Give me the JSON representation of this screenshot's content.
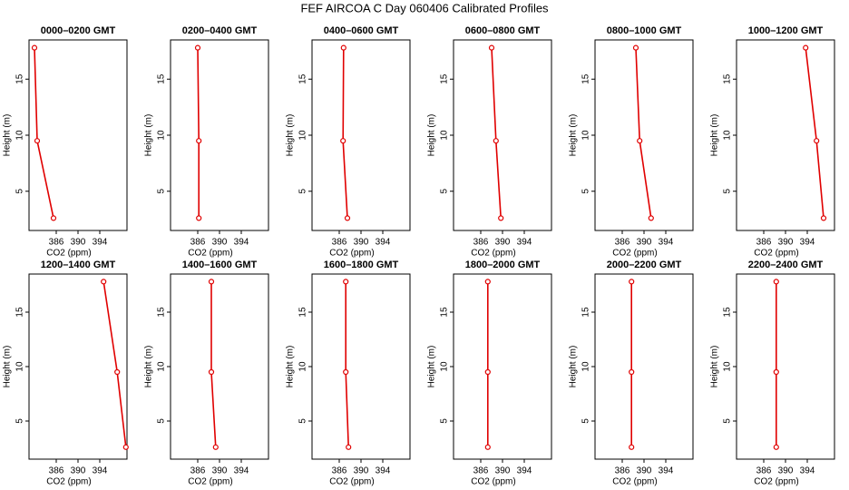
{
  "title": "FEF AIRCOA C  Day 060406  Calibrated Profiles",
  "chart_data": [
    {
      "type": "line",
      "title": "0000–0200 GMT",
      "x_label": "CO2 (ppm)",
      "y_label": "Height (m)",
      "xlim": [
        381,
        399
      ],
      "xticks": [
        386,
        390,
        394
      ],
      "ylim": [
        1.5,
        18.5
      ],
      "yticks": [
        5,
        10,
        15
      ],
      "series": [
        {
          "color": "#e00000",
          "x": [
            382.0,
            382.5,
            385.5
          ],
          "values": [
            17.8,
            9.5,
            2.6
          ]
        }
      ]
    },
    {
      "type": "line",
      "title": "0200–0400 GMT",
      "x_label": "CO2 (ppm)",
      "y_label": "Height (m)",
      "xlim": [
        381,
        399
      ],
      "xticks": [
        386,
        390,
        394
      ],
      "ylim": [
        1.5,
        18.5
      ],
      "yticks": [
        5,
        10,
        15
      ],
      "series": [
        {
          "color": "#e00000",
          "x": [
            386.0,
            386.2,
            386.2
          ],
          "values": [
            17.8,
            9.5,
            2.6
          ]
        }
      ]
    },
    {
      "type": "line",
      "title": "0400–0600 GMT",
      "x_label": "CO2 (ppm)",
      "y_label": "Height (m)",
      "xlim": [
        381,
        399
      ],
      "xticks": [
        386,
        390,
        394
      ],
      "ylim": [
        1.5,
        18.5
      ],
      "yticks": [
        5,
        10,
        15
      ],
      "series": [
        {
          "color": "#e00000",
          "x": [
            386.8,
            386.7,
            387.5
          ],
          "values": [
            17.8,
            9.5,
            2.6
          ]
        }
      ]
    },
    {
      "type": "line",
      "title": "0600–0800 GMT",
      "x_label": "CO2 (ppm)",
      "y_label": "Height (m)",
      "xlim": [
        381,
        399
      ],
      "xticks": [
        386,
        390,
        394
      ],
      "ylim": [
        1.5,
        18.5
      ],
      "yticks": [
        5,
        10,
        15
      ],
      "series": [
        {
          "color": "#e00000",
          "x": [
            388.0,
            388.8,
            389.7
          ],
          "values": [
            17.8,
            9.5,
            2.6
          ]
        }
      ]
    },
    {
      "type": "line",
      "title": "0800–1000 GMT",
      "x_label": "CO2 (ppm)",
      "y_label": "Height (m)",
      "xlim": [
        381,
        399
      ],
      "xticks": [
        386,
        390,
        394
      ],
      "ylim": [
        1.5,
        18.5
      ],
      "yticks": [
        5,
        10,
        15
      ],
      "series": [
        {
          "color": "#e00000",
          "x": [
            388.5,
            389.2,
            391.3
          ],
          "values": [
            17.8,
            9.5,
            2.6
          ]
        }
      ]
    },
    {
      "type": "line",
      "title": "1000–1200 GMT",
      "x_label": "CO2 (ppm)",
      "y_label": "Height (m)",
      "xlim": [
        381,
        399
      ],
      "xticks": [
        386,
        390,
        394
      ],
      "ylim": [
        1.5,
        18.5
      ],
      "yticks": [
        5,
        10,
        15
      ],
      "series": [
        {
          "color": "#e00000",
          "x": [
            393.7,
            395.7,
            397.0
          ],
          "values": [
            17.8,
            9.5,
            2.6
          ]
        }
      ]
    },
    {
      "type": "line",
      "title": "1200–1400 GMT",
      "x_label": "CO2 (ppm)",
      "y_label": "Height (m)",
      "xlim": [
        381,
        399
      ],
      "xticks": [
        386,
        390,
        394
      ],
      "ylim": [
        1.5,
        18.5
      ],
      "yticks": [
        5,
        10,
        15
      ],
      "series": [
        {
          "color": "#e00000",
          "x": [
            394.7,
            397.2,
            398.8
          ],
          "values": [
            17.8,
            9.5,
            2.6
          ]
        }
      ]
    },
    {
      "type": "line",
      "title": "1400–1600 GMT",
      "x_label": "CO2 (ppm)",
      "y_label": "Height (m)",
      "xlim": [
        381,
        399
      ],
      "xticks": [
        386,
        390,
        394
      ],
      "ylim": [
        1.5,
        18.5
      ],
      "yticks": [
        5,
        10,
        15
      ],
      "series": [
        {
          "color": "#e00000",
          "x": [
            388.5,
            388.5,
            389.3
          ],
          "values": [
            17.8,
            9.5,
            2.6
          ]
        }
      ]
    },
    {
      "type": "line",
      "title": "1600–1800 GMT",
      "x_label": "CO2 (ppm)",
      "y_label": "Height (m)",
      "xlim": [
        381,
        399
      ],
      "xticks": [
        386,
        390,
        394
      ],
      "ylim": [
        1.5,
        18.5
      ],
      "yticks": [
        5,
        10,
        15
      ],
      "series": [
        {
          "color": "#e00000",
          "x": [
            387.2,
            387.2,
            387.7
          ],
          "values": [
            17.8,
            9.5,
            2.6
          ]
        }
      ]
    },
    {
      "type": "line",
      "title": "1800–2000 GMT",
      "x_label": "CO2 (ppm)",
      "y_label": "Height (m)",
      "xlim": [
        381,
        399
      ],
      "xticks": [
        386,
        390,
        394
      ],
      "ylim": [
        1.5,
        18.5
      ],
      "yticks": [
        5,
        10,
        15
      ],
      "series": [
        {
          "color": "#e00000",
          "x": [
            387.3,
            387.3,
            387.3
          ],
          "values": [
            17.8,
            9.5,
            2.6
          ]
        }
      ]
    },
    {
      "type": "line",
      "title": "2000–2200 GMT",
      "x_label": "CO2 (ppm)",
      "y_label": "Height (m)",
      "xlim": [
        381,
        399
      ],
      "xticks": [
        386,
        390,
        394
      ],
      "ylim": [
        1.5,
        18.5
      ],
      "yticks": [
        5,
        10,
        15
      ],
      "series": [
        {
          "color": "#e00000",
          "x": [
            387.7,
            387.7,
            387.7
          ],
          "values": [
            17.8,
            9.5,
            2.6
          ]
        }
      ]
    },
    {
      "type": "line",
      "title": "2200–2400 GMT",
      "x_label": "CO2 (ppm)",
      "y_label": "Height (m)",
      "xlim": [
        381,
        399
      ],
      "xticks": [
        386,
        390,
        394
      ],
      "ylim": [
        1.5,
        18.5
      ],
      "yticks": [
        5,
        10,
        15
      ],
      "series": [
        {
          "color": "#e00000",
          "x": [
            388.3,
            388.3,
            388.3
          ],
          "values": [
            17.8,
            9.5,
            2.6
          ]
        }
      ]
    }
  ]
}
